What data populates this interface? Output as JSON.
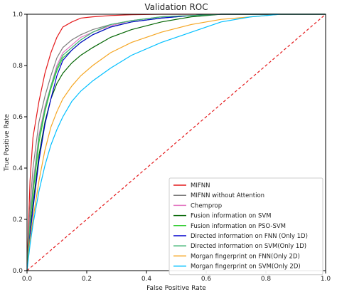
{
  "chart_data": {
    "type": "line",
    "title": "Validation ROC",
    "xlabel": "False Positive Rate",
    "ylabel": "True Positive Rate",
    "xlim": [
      0,
      1
    ],
    "ylim": [
      0,
      1
    ],
    "xticks": [
      "0.0",
      "0.2",
      "0.4",
      "0.6",
      "0.8",
      "1.0"
    ],
    "yticks": [
      "0.0",
      "0.2",
      "0.4",
      "0.6",
      "0.8",
      "1.0"
    ],
    "grid": false,
    "legend_position": "lower-right",
    "diagonal": {
      "x": [
        0,
        1
      ],
      "y": [
        0,
        1
      ],
      "color": "#e41a1c",
      "style": "dashed"
    },
    "series": [
      {
        "name": "MIFNN",
        "color": "#e41a1c",
        "x": [
          0,
          0.01,
          0.02,
          0.04,
          0.06,
          0.08,
          0.1,
          0.12,
          0.15,
          0.18,
          0.22,
          0.28,
          0.35,
          0.45,
          0.55,
          0.65,
          1.0
        ],
        "y": [
          0,
          0.35,
          0.52,
          0.66,
          0.77,
          0.85,
          0.91,
          0.95,
          0.97,
          0.985,
          0.99,
          0.995,
          0.998,
          1.0,
          1.0,
          1.0,
          1.0
        ]
      },
      {
        "name": "MIFNN without Attention",
        "color": "#7f7f7f",
        "x": [
          0,
          0.01,
          0.02,
          0.04,
          0.06,
          0.08,
          0.1,
          0.12,
          0.15,
          0.18,
          0.22,
          0.28,
          0.35,
          0.45,
          0.55,
          0.65,
          1.0
        ],
        "y": [
          0,
          0.25,
          0.4,
          0.58,
          0.68,
          0.76,
          0.83,
          0.87,
          0.9,
          0.92,
          0.94,
          0.96,
          0.975,
          0.99,
          0.995,
          1.0,
          1.0
        ]
      },
      {
        "name": "Chemprop",
        "color": "#e377c2",
        "x": [
          0,
          0.01,
          0.02,
          0.04,
          0.06,
          0.08,
          0.1,
          0.12,
          0.15,
          0.18,
          0.22,
          0.28,
          0.35,
          0.45,
          0.55,
          0.65,
          1.0
        ],
        "y": [
          0,
          0.2,
          0.34,
          0.53,
          0.64,
          0.72,
          0.8,
          0.85,
          0.88,
          0.91,
          0.93,
          0.955,
          0.975,
          0.99,
          0.995,
          1.0,
          1.0
        ]
      },
      {
        "name": "Fusion information on SVM",
        "color": "#006400",
        "x": [
          0,
          0.01,
          0.02,
          0.04,
          0.06,
          0.08,
          0.1,
          0.12,
          0.15,
          0.18,
          0.22,
          0.28,
          0.35,
          0.45,
          0.55,
          0.65,
          1.0
        ],
        "y": [
          0,
          0.15,
          0.26,
          0.45,
          0.58,
          0.67,
          0.73,
          0.77,
          0.81,
          0.84,
          0.87,
          0.91,
          0.94,
          0.97,
          0.99,
          1.0,
          1.0
        ]
      },
      {
        "name": "Fusion information on PSO-SVM",
        "color": "#32cd32",
        "x": [
          0,
          0.01,
          0.02,
          0.04,
          0.06,
          0.08,
          0.1,
          0.12,
          0.15,
          0.18,
          0.22,
          0.28,
          0.35,
          0.45,
          0.55,
          0.65,
          1.0
        ],
        "y": [
          0,
          0.18,
          0.3,
          0.5,
          0.62,
          0.71,
          0.78,
          0.83,
          0.86,
          0.89,
          0.92,
          0.95,
          0.97,
          0.985,
          0.995,
          1.0,
          1.0
        ]
      },
      {
        "name": "Directed information on FNN (Only 1D)",
        "color": "#0000cd",
        "x": [
          0,
          0.01,
          0.02,
          0.04,
          0.06,
          0.08,
          0.1,
          0.12,
          0.15,
          0.18,
          0.22,
          0.28,
          0.35,
          0.45,
          0.55,
          0.65,
          1.0
        ],
        "y": [
          0,
          0.14,
          0.24,
          0.43,
          0.57,
          0.67,
          0.76,
          0.82,
          0.86,
          0.89,
          0.92,
          0.95,
          0.97,
          0.985,
          0.995,
          1.0,
          1.0
        ]
      },
      {
        "name": "Directed information on SVM(Only 1D)",
        "color": "#3cb371",
        "x": [
          0,
          0.01,
          0.02,
          0.04,
          0.06,
          0.08,
          0.1,
          0.12,
          0.15,
          0.18,
          0.22,
          0.28,
          0.35,
          0.45,
          0.55,
          0.65,
          1.0
        ],
        "y": [
          0,
          0.19,
          0.32,
          0.52,
          0.63,
          0.72,
          0.79,
          0.84,
          0.87,
          0.9,
          0.93,
          0.96,
          0.975,
          0.99,
          0.995,
          1.0,
          1.0
        ]
      },
      {
        "name": "Morgan fingerprint on FNN(Only 2D)",
        "color": "#f5a623",
        "x": [
          0,
          0.01,
          0.02,
          0.04,
          0.06,
          0.08,
          0.1,
          0.12,
          0.15,
          0.18,
          0.22,
          0.28,
          0.35,
          0.45,
          0.55,
          0.65,
          0.75,
          0.85,
          1.0
        ],
        "y": [
          0,
          0.12,
          0.2,
          0.35,
          0.47,
          0.56,
          0.62,
          0.67,
          0.72,
          0.76,
          0.8,
          0.85,
          0.89,
          0.93,
          0.96,
          0.98,
          0.99,
          1.0,
          1.0
        ]
      },
      {
        "name": "Morgan fingerprint on SVM(Only 2D)",
        "color": "#00bfff",
        "x": [
          0,
          0.01,
          0.02,
          0.04,
          0.06,
          0.08,
          0.1,
          0.12,
          0.15,
          0.18,
          0.22,
          0.28,
          0.35,
          0.45,
          0.55,
          0.65,
          0.75,
          0.85,
          1.0
        ],
        "y": [
          0,
          0.1,
          0.18,
          0.31,
          0.41,
          0.49,
          0.55,
          0.6,
          0.66,
          0.7,
          0.74,
          0.79,
          0.84,
          0.89,
          0.93,
          0.97,
          0.99,
          1.0,
          1.0
        ]
      }
    ]
  }
}
